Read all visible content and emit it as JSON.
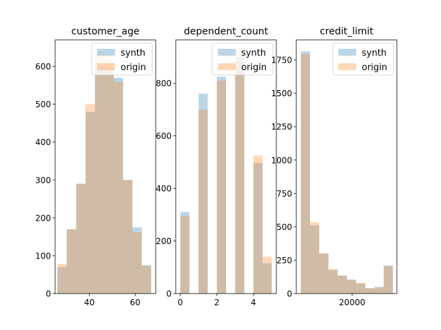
{
  "colors": {
    "synth": "#1f77b4",
    "origin": "#ff7f0e",
    "bar_alpha": 0.3
  },
  "chart_data": [
    {
      "type": "bar",
      "title": "customer_age",
      "xlim": [
        25,
        69
      ],
      "ylim": [
        0,
        670
      ],
      "xticks": [
        {
          "v": 40,
          "label": "40"
        },
        {
          "v": 60,
          "label": "60"
        }
      ],
      "yticks": [
        {
          "v": 0,
          "label": "0"
        },
        {
          "v": 100,
          "label": "100"
        },
        {
          "v": 200,
          "label": "200"
        },
        {
          "v": 300,
          "label": "300"
        },
        {
          "v": 400,
          "label": "400"
        },
        {
          "v": 500,
          "label": "500"
        },
        {
          "v": 600,
          "label": "600"
        }
      ],
      "legend": {
        "position": "upper right",
        "entries": [
          "synth",
          "origin"
        ]
      },
      "series": [
        {
          "name": "synth",
          "bins": [
            [
              26,
              30.1
            ],
            [
              30.1,
              34.2
            ],
            [
              34.2,
              38.3
            ],
            [
              38.3,
              42.4
            ],
            [
              42.4,
              46.5
            ],
            [
              46.5,
              50.6
            ],
            [
              50.6,
              54.7
            ],
            [
              54.7,
              58.8
            ],
            [
              58.8,
              62.9
            ],
            [
              62.9,
              67
            ]
          ],
          "values": [
            70,
            170,
            290,
            480,
            600,
            600,
            570,
            300,
            175,
            75
          ]
        },
        {
          "name": "origin",
          "bins": [
            [
              26,
              30.1
            ],
            [
              30.1,
              34.2
            ],
            [
              34.2,
              38.3
            ],
            [
              38.3,
              42.4
            ],
            [
              42.4,
              46.5
            ],
            [
              46.5,
              50.6
            ],
            [
              50.6,
              54.7
            ],
            [
              54.7,
              58.8
            ],
            [
              58.8,
              62.9
            ],
            [
              62.9,
              67
            ]
          ],
          "values": [
            78,
            170,
            290,
            500,
            640,
            620,
            560,
            300,
            162,
            73
          ]
        }
      ]
    },
    {
      "type": "bar",
      "title": "dependent_count",
      "xlim": [
        -0.25,
        5.25
      ],
      "ylim": [
        0,
        965
      ],
      "xticks": [
        {
          "v": 0,
          "label": "0"
        },
        {
          "v": 2,
          "label": "2"
        },
        {
          "v": 4,
          "label": "4"
        }
      ],
      "yticks": [
        {
          "v": 0,
          "label": "0"
        },
        {
          "v": 200,
          "label": "200"
        },
        {
          "v": 400,
          "label": "400"
        },
        {
          "v": 600,
          "label": "600"
        },
        {
          "v": 800,
          "label": "800"
        }
      ],
      "legend": {
        "position": "upper right",
        "entries": [
          "synth",
          "origin"
        ]
      },
      "series": [
        {
          "name": "synth",
          "bins": [
            [
              0,
              0.5
            ],
            [
              1,
              1.5
            ],
            [
              2,
              2.5
            ],
            [
              3,
              3.5
            ],
            [
              4,
              4.5
            ],
            [
              4.5,
              5
            ]
          ],
          "values": [
            310,
            760,
            825,
            900,
            497,
            115
          ]
        },
        {
          "name": "origin",
          "bins": [
            [
              0,
              0.5
            ],
            [
              1,
              1.5
            ],
            [
              2,
              2.5
            ],
            [
              3,
              3.5
            ],
            [
              4,
              4.5
            ],
            [
              4.5,
              5
            ]
          ],
          "values": [
            295,
            700,
            810,
            935,
            525,
            140
          ]
        }
      ]
    },
    {
      "type": "bar",
      "title": "credit_limit",
      "xlim": [
        -200,
        36200
      ],
      "ylim": [
        0,
        1900
      ],
      "xticks": [
        {
          "v": 20000,
          "label": "20000"
        }
      ],
      "yticks": [
        {
          "v": 0,
          "label": "0"
        },
        {
          "v": 250,
          "label": "250"
        },
        {
          "v": 500,
          "label": "500"
        },
        {
          "v": 750,
          "label": "750"
        },
        {
          "v": 1000,
          "label": "1000"
        },
        {
          "v": 1250,
          "label": "1250"
        },
        {
          "v": 1500,
          "label": "1500"
        },
        {
          "v": 1750,
          "label": "1750"
        }
      ],
      "legend": {
        "position": "upper right",
        "entries": [
          "synth",
          "origin"
        ]
      },
      "series": [
        {
          "name": "synth",
          "bins": [
            [
              1438,
              4770
            ],
            [
              4770,
              8103
            ],
            [
              8103,
              11435
            ],
            [
              11435,
              14768
            ],
            [
              14768,
              18100
            ],
            [
              18100,
              21433
            ],
            [
              21433,
              24765
            ],
            [
              24765,
              28098
            ],
            [
              28098,
              31430
            ],
            [
              31430,
              34763
            ]
          ],
          "values": [
            1815,
            510,
            300,
            175,
            135,
            105,
            75,
            40,
            50,
            210
          ]
        },
        {
          "name": "origin",
          "bins": [
            [
              1438,
              4770
            ],
            [
              4770,
              8103
            ],
            [
              8103,
              11435
            ],
            [
              11435,
              14768
            ],
            [
              14768,
              18100
            ],
            [
              18100,
              21433
            ],
            [
              21433,
              24765
            ],
            [
              24765,
              28098
            ],
            [
              28098,
              31430
            ],
            [
              31430,
              34763
            ]
          ],
          "values": [
            1795,
            535,
            300,
            185,
            135,
            100,
            80,
            40,
            45,
            205
          ]
        }
      ]
    }
  ]
}
